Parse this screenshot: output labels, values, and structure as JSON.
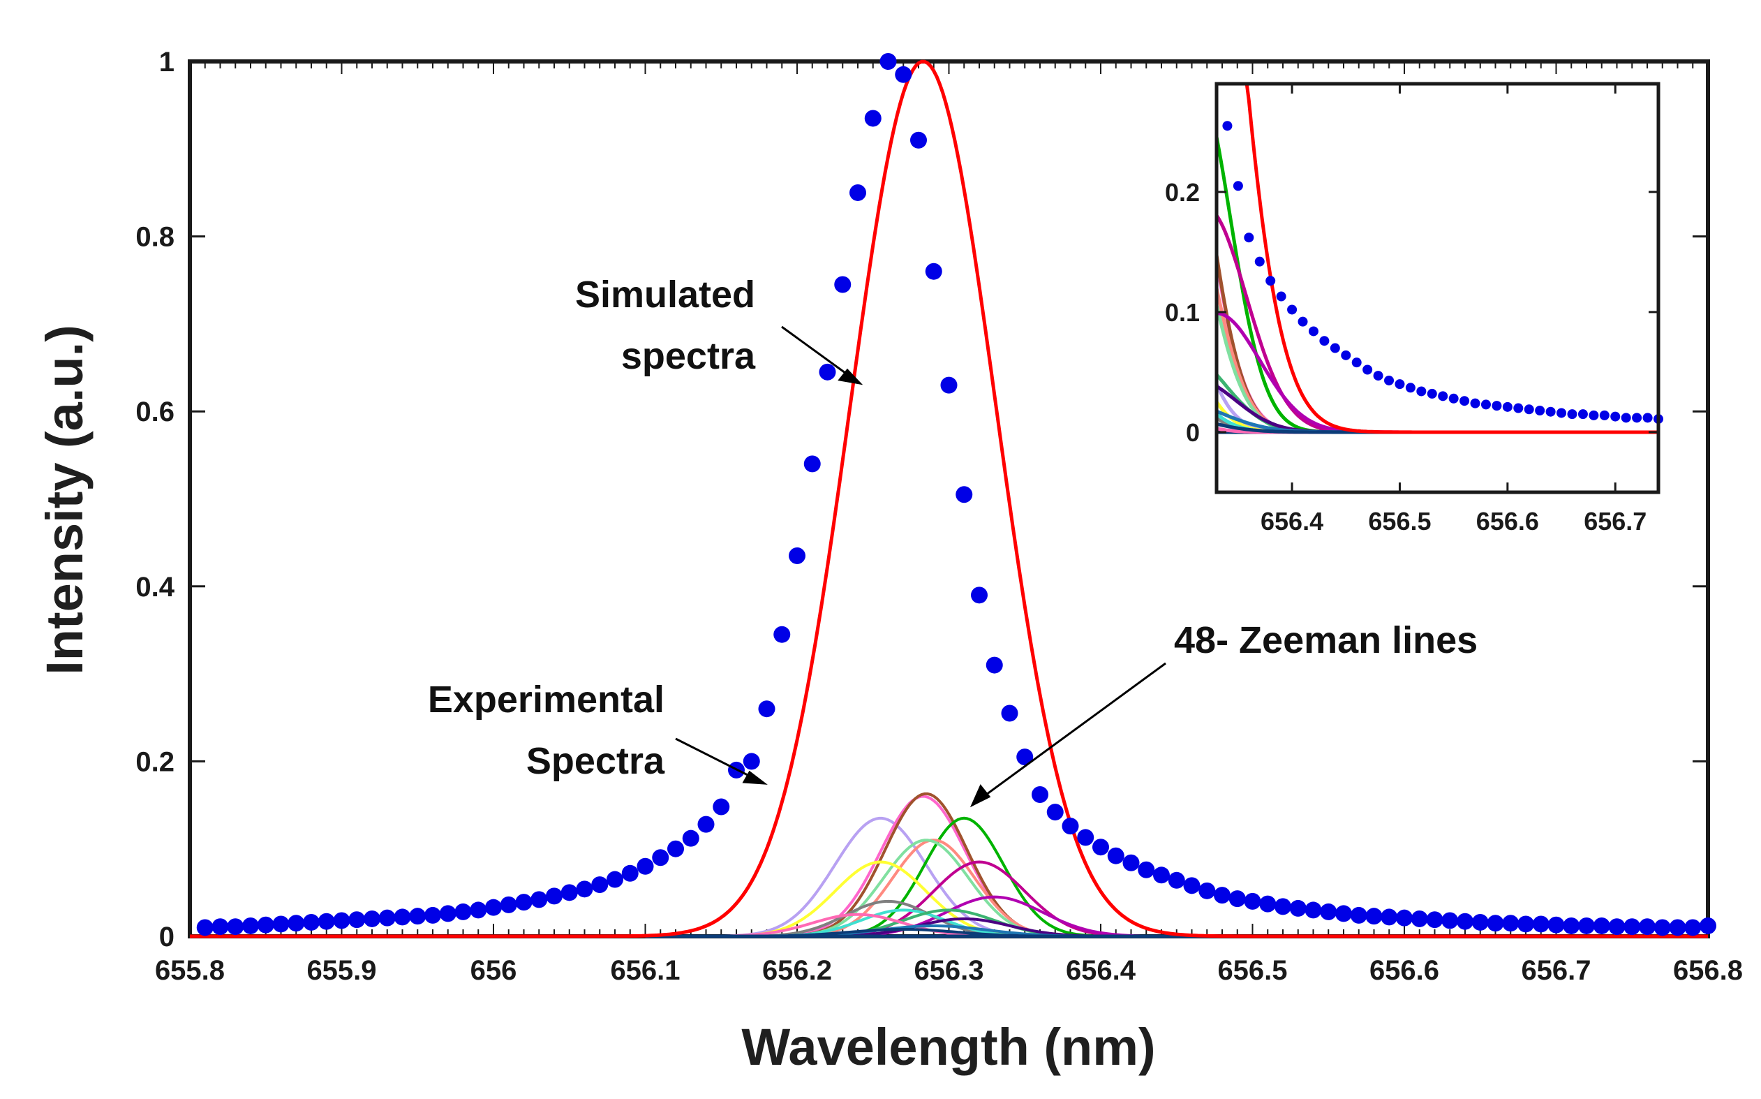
{
  "chart_data": {
    "type": "line",
    "xlabel": "Wavelength (nm)",
    "ylabel": "Intensity (a.u.)",
    "xlim": [
      655.8,
      656.8
    ],
    "ylim": [
      0,
      1
    ],
    "xticks": [
      "655.8",
      "655.9",
      "656",
      "656.1",
      "656.2",
      "656.3",
      "656.4",
      "656.5",
      "656.6",
      "656.7",
      "656.8"
    ],
    "yticks": [
      "0",
      "0.2",
      "0.4",
      "0.6",
      "0.8",
      "1"
    ],
    "colors": {
      "experimental": "#0000e6",
      "simulated": "#ff0000",
      "frame": "#1a1a1a"
    },
    "series": [
      {
        "name": "Experimental Spectra",
        "kind": "scatter",
        "x": [
          655.81,
          655.82,
          655.83,
          655.84,
          655.85,
          655.86,
          655.87,
          655.88,
          655.89,
          655.9,
          655.91,
          655.92,
          655.93,
          655.94,
          655.95,
          655.96,
          655.97,
          655.98,
          655.99,
          656.0,
          656.01,
          656.02,
          656.03,
          656.04,
          656.05,
          656.06,
          656.07,
          656.08,
          656.09,
          656.1,
          656.11,
          656.12,
          656.13,
          656.14,
          656.15,
          656.16,
          656.17,
          656.18,
          656.19,
          656.2,
          656.21,
          656.22,
          656.23,
          656.24,
          656.25,
          656.26,
          656.27,
          656.28,
          656.29,
          656.3,
          656.31,
          656.32,
          656.33,
          656.34,
          656.35,
          656.36,
          656.37,
          656.38,
          656.39,
          656.4,
          656.41,
          656.42,
          656.43,
          656.44,
          656.45,
          656.46,
          656.47,
          656.48,
          656.49,
          656.5,
          656.51,
          656.52,
          656.53,
          656.54,
          656.55,
          656.56,
          656.57,
          656.58,
          656.59,
          656.6,
          656.61,
          656.62,
          656.63,
          656.64,
          656.65,
          656.66,
          656.67,
          656.68,
          656.69,
          656.7,
          656.71,
          656.72,
          656.73,
          656.74,
          656.75,
          656.76,
          656.77,
          656.78,
          656.79,
          656.8
        ],
        "y": [
          0.01,
          0.011,
          0.011,
          0.012,
          0.013,
          0.014,
          0.015,
          0.016,
          0.017,
          0.018,
          0.019,
          0.02,
          0.021,
          0.022,
          0.023,
          0.024,
          0.026,
          0.028,
          0.03,
          0.033,
          0.036,
          0.039,
          0.042,
          0.046,
          0.05,
          0.054,
          0.059,
          0.065,
          0.072,
          0.08,
          0.09,
          0.1,
          0.112,
          0.128,
          0.148,
          0.19,
          0.2,
          0.26,
          0.345,
          0.435,
          0.54,
          0.645,
          0.745,
          0.85,
          0.935,
          1.0,
          0.985,
          0.91,
          0.76,
          0.63,
          0.505,
          0.39,
          0.31,
          0.255,
          0.205,
          0.162,
          0.142,
          0.126,
          0.113,
          0.102,
          0.092,
          0.084,
          0.076,
          0.07,
          0.064,
          0.058,
          0.052,
          0.047,
          0.043,
          0.04,
          0.037,
          0.034,
          0.032,
          0.03,
          0.028,
          0.026,
          0.024,
          0.023,
          0.022,
          0.021,
          0.02,
          0.019,
          0.018,
          0.017,
          0.016,
          0.015,
          0.015,
          0.014,
          0.014,
          0.013,
          0.012,
          0.012,
          0.012,
          0.011,
          0.011,
          0.011,
          0.01,
          0.01,
          0.01,
          0.012
        ]
      },
      {
        "name": "Simulated spectra",
        "kind": "line",
        "function": "gaussian",
        "amplitude": 1.0,
        "center": 656.283,
        "sigma": 0.048
      },
      {
        "name": "48- Zeeman lines",
        "kind": "component-gaussians",
        "components": [
          {
            "center": 656.255,
            "amplitude": 0.135,
            "sigma": 0.03,
            "color": "#b8a1f2"
          },
          {
            "center": 656.283,
            "amplitude": 0.16,
            "sigma": 0.028,
            "color": "#ff66cc"
          },
          {
            "center": 656.285,
            "amplitude": 0.163,
            "sigma": 0.027,
            "color": "#a0522d"
          },
          {
            "center": 656.31,
            "amplitude": 0.135,
            "sigma": 0.026,
            "color": "#00b300"
          },
          {
            "center": 656.29,
            "amplitude": 0.11,
            "sigma": 0.027,
            "color": "#ff8a80"
          },
          {
            "center": 656.285,
            "amplitude": 0.11,
            "sigma": 0.028,
            "color": "#80e0a0"
          },
          {
            "center": 656.255,
            "amplitude": 0.085,
            "sigma": 0.03,
            "color": "#ffff33"
          },
          {
            "center": 656.32,
            "amplitude": 0.085,
            "sigma": 0.03,
            "color": "#c00090"
          },
          {
            "center": 656.33,
            "amplitude": 0.045,
            "sigma": 0.032,
            "color": "#b000b0"
          },
          {
            "center": 656.26,
            "amplitude": 0.04,
            "sigma": 0.028,
            "color": "#7f7f7f"
          },
          {
            "center": 656.27,
            "amplitude": 0.03,
            "sigma": 0.028,
            "color": "#40e0d0"
          },
          {
            "center": 656.3,
            "amplitude": 0.03,
            "sigma": 0.03,
            "color": "#3cb371"
          },
          {
            "center": 656.24,
            "amplitude": 0.025,
            "sigma": 0.03,
            "color": "#ff69b4"
          },
          {
            "center": 656.31,
            "amplitude": 0.02,
            "sigma": 0.03,
            "color": "#4b0082"
          },
          {
            "center": 656.29,
            "amplitude": 0.012,
            "sigma": 0.035,
            "color": "#1f77b4"
          },
          {
            "center": 656.27,
            "amplitude": 0.008,
            "sigma": 0.035,
            "color": "#0b3c78"
          }
        ]
      }
    ],
    "annotations": [
      {
        "lines": [
          "Simulated",
          "spectra"
        ],
        "points_to": "Simulated spectra"
      },
      {
        "lines": [
          "Experimental",
          "Spectra"
        ],
        "points_to": "Experimental Spectra"
      },
      {
        "lines": [
          "48- Zeeman lines"
        ],
        "points_to": "48- Zeeman lines"
      }
    ],
    "inset": {
      "xlim": [
        656.33,
        656.74
      ],
      "ylim": [
        -0.05,
        0.29
      ],
      "xticks": [
        "656.4",
        "656.5",
        "656.6",
        "656.7"
      ],
      "yticks": [
        "0",
        "0.1",
        "0.2"
      ]
    }
  }
}
